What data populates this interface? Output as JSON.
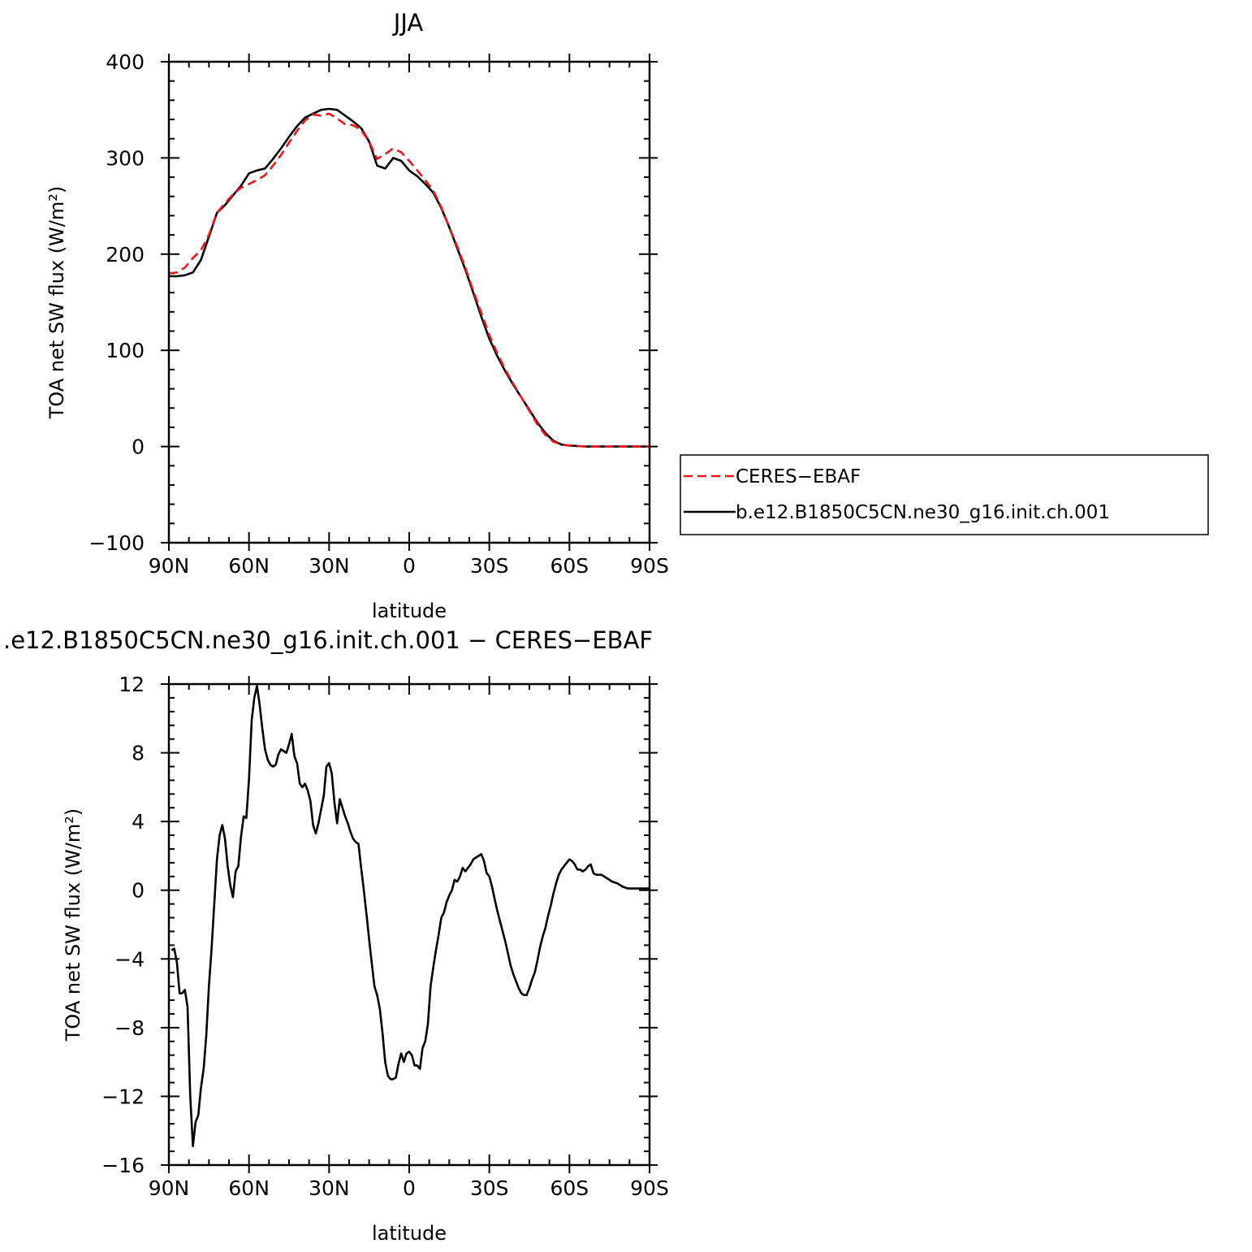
{
  "chart_data": [
    {
      "type": "line",
      "title": "JJA",
      "xlabel": "latitude",
      "ylabel": "TOA net SW flux (W/m²)",
      "xlim": [
        90,
        -90
      ],
      "ylim": [
        -100,
        400
      ],
      "xticks": [
        90,
        60,
        30,
        0,
        -30,
        -60,
        -90
      ],
      "xtick_labels": [
        "90N",
        "60N",
        "30N",
        "0",
        "30S",
        "60S",
        "90S"
      ],
      "yticks": [
        -100,
        0,
        100,
        200,
        300,
        400
      ],
      "ytick_labels": [
        "−100",
        "0",
        "100",
        "200",
        "300",
        "400"
      ],
      "legend": {
        "placement": "right",
        "entries": [
          "CERES−EBAF",
          "b.e12.B1850C5CN.ne30_g16.init.ch.001"
        ]
      },
      "series": [
        {
          "name": "CERES−EBAF",
          "color": "#e41a1c",
          "dash": true,
          "x": [
            90,
            87,
            84,
            81,
            78,
            75,
            72,
            69,
            66,
            63,
            60,
            57,
            54,
            51,
            48,
            45,
            42,
            39,
            36,
            33,
            30,
            27,
            24,
            21,
            18,
            15,
            12,
            9,
            6,
            3,
            0,
            -3,
            -6,
            -9,
            -12,
            -15,
            -18,
            -21,
            -24,
            -27,
            -30,
            -33,
            -36,
            -39,
            -42,
            -45,
            -48,
            -51,
            -54,
            -57,
            -60,
            -63,
            -66,
            -69,
            -72,
            -75,
            -78,
            -81,
            -84,
            -87,
            -90
          ],
          "y": [
            180,
            181,
            186,
            196,
            204,
            220,
            243,
            253,
            262,
            269,
            273,
            277,
            282,
            292,
            303,
            316,
            328,
            339,
            345,
            344,
            346,
            341,
            335,
            334,
            329,
            317,
            299,
            304,
            310,
            306,
            297,
            287,
            277,
            266,
            249,
            228,
            208,
            186,
            162,
            139,
            116,
            97,
            80,
            65,
            51,
            37,
            23,
            12,
            5,
            2,
            1,
            0.5,
            0,
            0,
            0,
            0,
            0,
            0,
            0,
            0,
            0
          ]
        },
        {
          "name": "b.e12.B1850C5CN.ne30_g16.init.ch.001",
          "color": "#000000",
          "dash": false,
          "x": [
            90,
            87,
            84,
            81,
            78,
            75,
            72,
            69,
            66,
            63,
            60,
            57,
            54,
            51,
            48,
            45,
            42,
            39,
            36,
            33,
            30,
            27,
            24,
            21,
            18,
            15,
            12,
            9,
            6,
            3,
            0,
            -3,
            -6,
            -9,
            -12,
            -15,
            -18,
            -21,
            -24,
            -27,
            -30,
            -33,
            -36,
            -39,
            -42,
            -45,
            -48,
            -51,
            -54,
            -57,
            -60,
            -63,
            -66,
            -69,
            -72,
            -75,
            -78,
            -81,
            -84,
            -87,
            -90
          ],
          "y": [
            177,
            177,
            178,
            181,
            194,
            218,
            243,
            251,
            261,
            271,
            284,
            287,
            289,
            299,
            310,
            322,
            333,
            342,
            346,
            350,
            351,
            350,
            344,
            338,
            331,
            317,
            292,
            289,
            300,
            297,
            287,
            281,
            273,
            264,
            248,
            228,
            206,
            184,
            160,
            135,
            112,
            94,
            78,
            64,
            51,
            38,
            25,
            14,
            6,
            2,
            1,
            0.5,
            0,
            0,
            0,
            0,
            0,
            0,
            0,
            0,
            0
          ]
        }
      ]
    },
    {
      "type": "line",
      "title": ".e12.B1850C5CN.ne30_g16.init.ch.001 − CERES−EBAF",
      "xlabel": "latitude",
      "ylabel": "TOA net SW flux (W/m²)",
      "xlim": [
        90,
        -90
      ],
      "ylim": [
        -16,
        12
      ],
      "xticks": [
        90,
        60,
        30,
        0,
        -30,
        -60,
        -90
      ],
      "xtick_labels": [
        "90N",
        "60N",
        "30N",
        "0",
        "30S",
        "60S",
        "90S"
      ],
      "yticks": [
        -16,
        -12,
        -8,
        -4,
        0,
        4,
        8,
        12
      ],
      "ytick_labels": [
        "−16",
        "−12",
        "−8",
        "−4",
        "0",
        "4",
        "8",
        "12"
      ],
      "series": [
        {
          "color": "#000000",
          "x": [
            89,
            88,
            87,
            86,
            85,
            84,
            83,
            82,
            81,
            80,
            79,
            78,
            77,
            76,
            75,
            74,
            73,
            72,
            71,
            70,
            69,
            68,
            67,
            66,
            65,
            64,
            63,
            62,
            61,
            60,
            59,
            58,
            57,
            56,
            55,
            54,
            53,
            52,
            51,
            50,
            49,
            48,
            47,
            46,
            45,
            44,
            43,
            42,
            41,
            40,
            39,
            38,
            37,
            36,
            35,
            34,
            33,
            32,
            31,
            30,
            29,
            28,
            27,
            26,
            25,
            24,
            23,
            22,
            21,
            20,
            19,
            18,
            17,
            16,
            15,
            14,
            13,
            12,
            11,
            10,
            9,
            8,
            7,
            6,
            5,
            4,
            3,
            2,
            1,
            0,
            -1,
            -2,
            -3,
            -4,
            -5,
            -6,
            -7,
            -8,
            -9,
            -10,
            -11,
            -12,
            -13,
            -14,
            -15,
            -16,
            -17,
            -18,
            -19,
            -20,
            -21,
            -22,
            -23,
            -24,
            -25,
            -26,
            -27,
            -28,
            -29,
            -30,
            -31,
            -32,
            -33,
            -34,
            -35,
            -36,
            -37,
            -38,
            -39,
            -40,
            -41,
            -42,
            -43,
            -44,
            -45,
            -46,
            -47,
            -48,
            -49,
            -50,
            -51,
            -52,
            -53,
            -54,
            -55,
            -56,
            -57,
            -58,
            -59,
            -60,
            -61,
            -62,
            -63,
            -64,
            -65,
            -66,
            -67,
            -68,
            -69,
            -70,
            -72,
            -74,
            -76,
            -78,
            -80,
            -82,
            -84,
            -86,
            -88,
            -90
          ],
          "y": [
            -3.5,
            -3.4,
            -4.2,
            -6.0,
            -6.0,
            -5.8,
            -6.8,
            -12.0,
            -14.9,
            -13.5,
            -13.1,
            -11.5,
            -10.4,
            -8.5,
            -5.6,
            -3.4,
            -0.8,
            1.8,
            3.2,
            3.8,
            3.0,
            1.4,
            0.3,
            -0.4,
            1.1,
            1.4,
            3.1,
            4.3,
            4.2,
            6.5,
            9.9,
            11.2,
            11.9,
            10.8,
            9.4,
            8.2,
            7.6,
            7.3,
            7.2,
            7.3,
            7.9,
            8.2,
            8.1,
            8.0,
            8.5,
            9.1,
            7.8,
            7.4,
            6.2,
            6.0,
            6.2,
            5.8,
            5.2,
            3.8,
            3.3,
            3.9,
            4.7,
            5.5,
            7.2,
            7.4,
            6.8,
            5.1,
            3.9,
            5.3,
            4.8,
            4.3,
            3.9,
            3.4,
            3.0,
            2.8,
            2.7,
            1.3,
            0.0,
            -1.4,
            -2.9,
            -4.3,
            -5.6,
            -6.1,
            -6.9,
            -8.3,
            -10.0,
            -10.8,
            -11.0,
            -11.0,
            -10.9,
            -10.1,
            -9.5,
            -10.0,
            -9.5,
            -9.4,
            -9.6,
            -10.2,
            -10.2,
            -10.4,
            -9.2,
            -8.8,
            -7.8,
            -5.6,
            -4.5,
            -3.5,
            -2.6,
            -1.6,
            -1.3,
            -0.7,
            -0.3,
            0.0,
            0.6,
            0.5,
            0.8,
            1.3,
            1.1,
            1.3,
            1.5,
            1.8,
            1.9,
            2.0,
            2.1,
            1.7,
            1.0,
            0.8,
            0.2,
            -0.5,
            -1.2,
            -1.8,
            -2.4,
            -3.0,
            -3.7,
            -4.4,
            -4.9,
            -5.3,
            -5.7,
            -6.0,
            -6.1,
            -6.1,
            -5.7,
            -5.2,
            -4.8,
            -4.1,
            -3.3,
            -2.7,
            -2.2,
            -1.5,
            -0.9,
            -0.2,
            0.4,
            0.9,
            1.2,
            1.4,
            1.6,
            1.8,
            1.7,
            1.5,
            1.2,
            1.2,
            1.1,
            1.2,
            1.4,
            1.5,
            1.0,
            0.9,
            0.9,
            0.7,
            0.5,
            0.4,
            0.2,
            0.1,
            0.1,
            0.1,
            0.1,
            0.1
          ]
        }
      ]
    }
  ]
}
